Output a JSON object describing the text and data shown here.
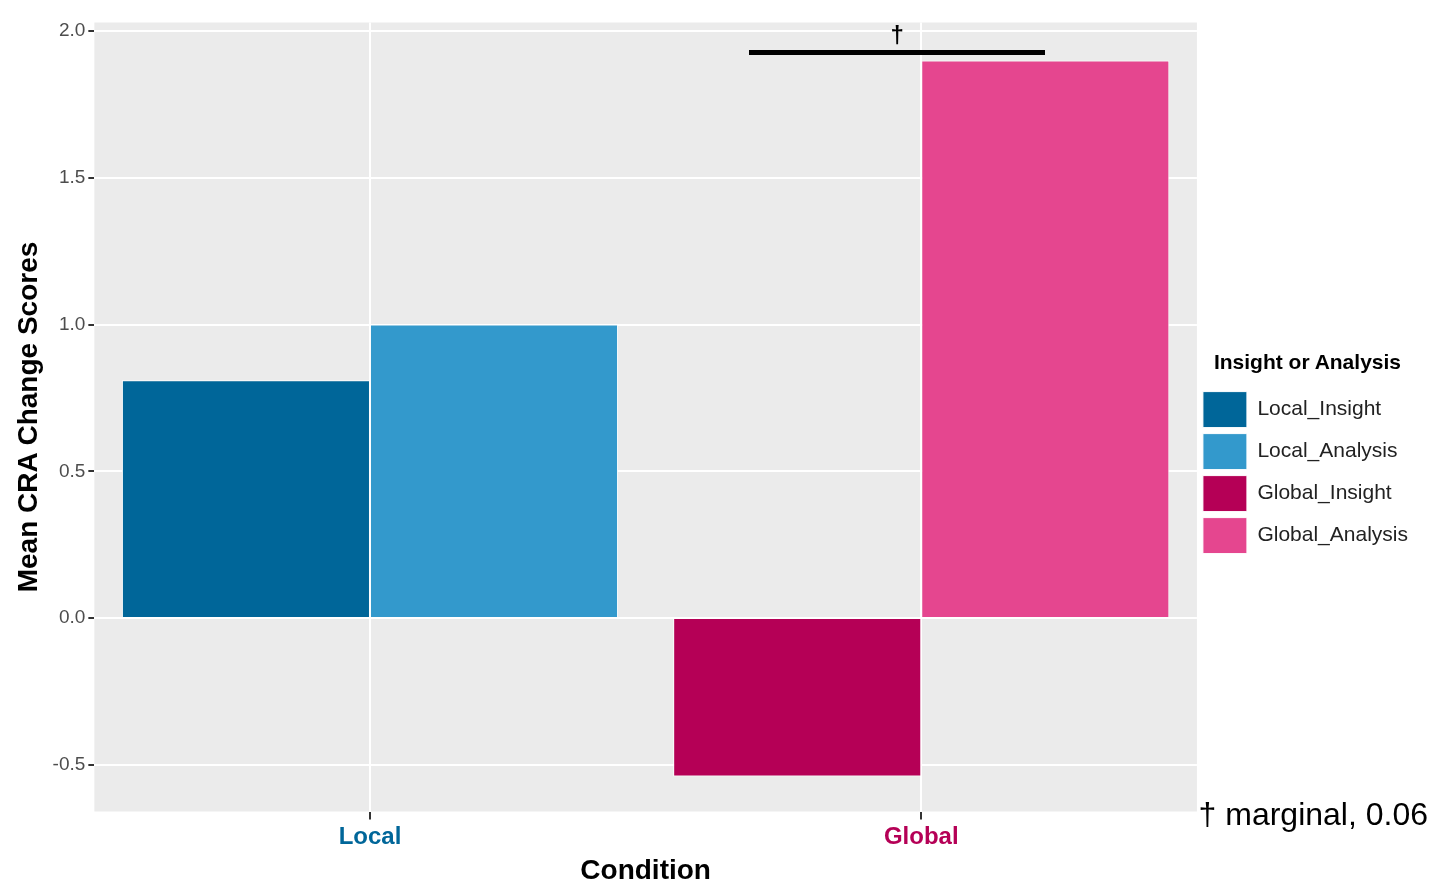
{
  "chart_data": {
    "type": "bar",
    "xlabel": "Condition",
    "ylabel": "Mean CRA Change Scores",
    "legend_title": "Insight or Analysis",
    "categories": [
      "Local",
      "Global"
    ],
    "series": [
      {
        "name": "Local_Insight",
        "color": "#006699",
        "values": [
          0.81,
          null
        ]
      },
      {
        "name": "Local_Analysis",
        "color": "#3399cc",
        "values": [
          1.0,
          null
        ]
      },
      {
        "name": "Global_Insight",
        "color": "#b50056",
        "values": [
          null,
          -0.54
        ]
      },
      {
        "name": "Global_Analysis",
        "color": "#e5468f",
        "values": [
          null,
          1.9
        ]
      }
    ],
    "ylim": [
      -0.66,
      2.03
    ],
    "yticks": [
      -0.5,
      {
        "value": 0,
        "label": "0.0"
      },
      0.5,
      {
        "value": 1,
        "label": "1.0"
      },
      1.5,
      {
        "value": 2,
        "label": "2.0"
      }
    ],
    "grid": true,
    "legend": "right",
    "annotations": [
      "†",
      "† marginal, 0.06"
    ]
  }
}
